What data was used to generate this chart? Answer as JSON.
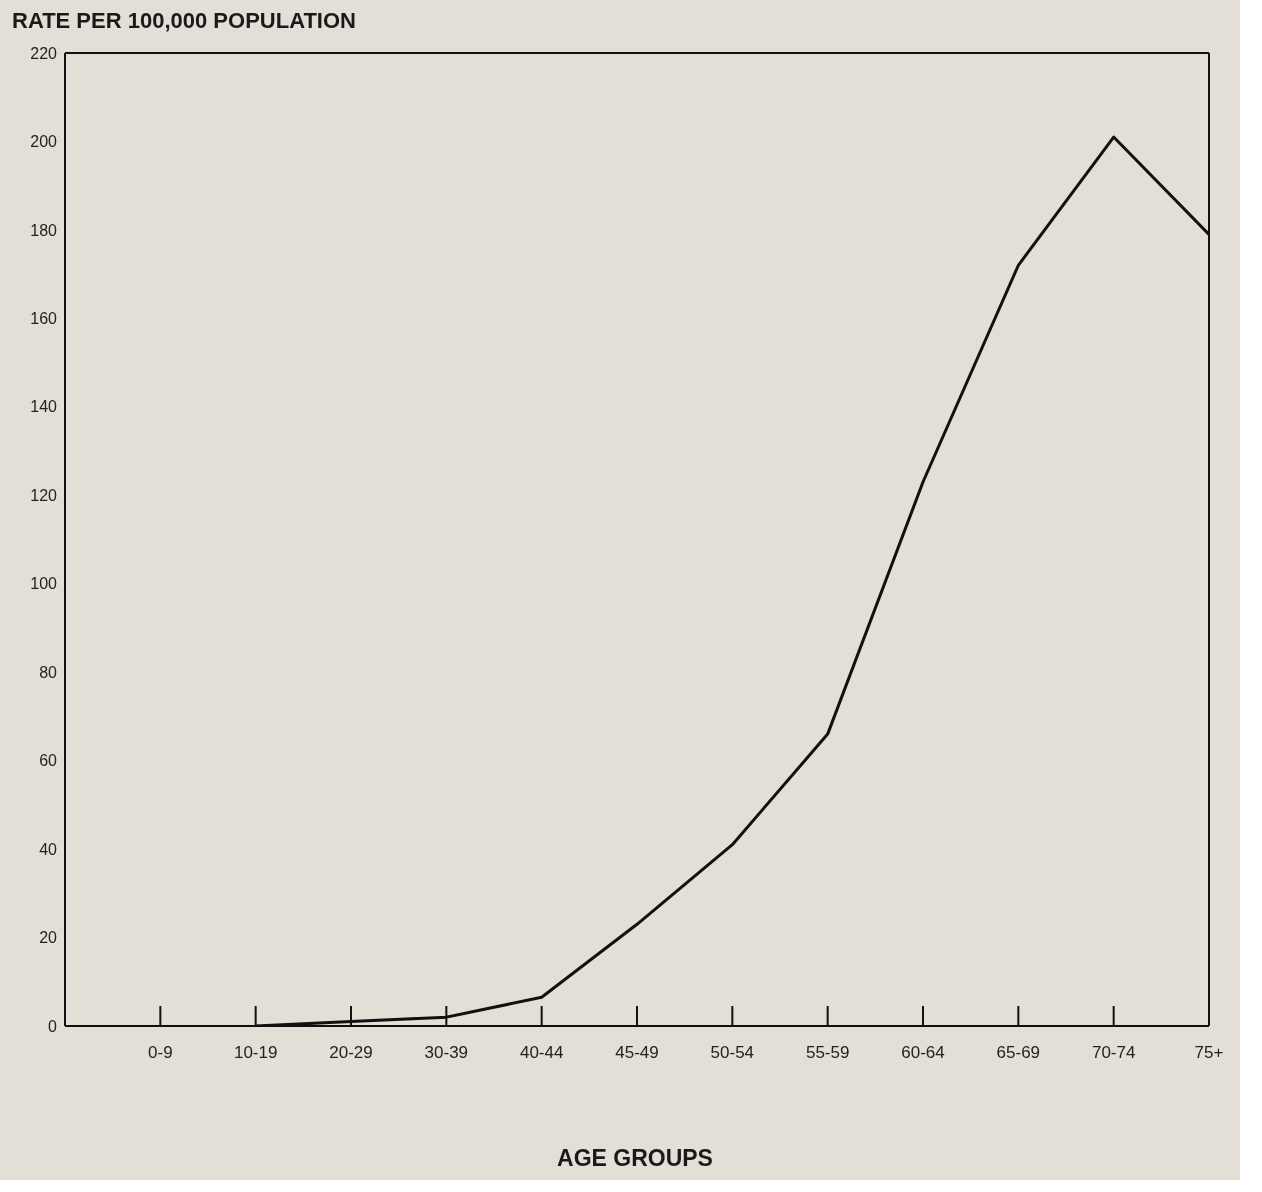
{
  "chart_data": {
    "type": "line",
    "ylabel": "RATE PER 100,000 POPULATION",
    "xlabel": "AGE GROUPS",
    "categories": [
      "0-9",
      "10-19",
      "20-29",
      "30-39",
      "40-44",
      "45-49",
      "50-54",
      "55-59",
      "60-64",
      "65-69",
      "70-74",
      "75+"
    ],
    "series": [
      {
        "color": "#111111",
        "values": [
          null,
          0,
          1,
          2,
          6.5,
          23,
          41,
          66,
          123,
          172,
          201,
          179
        ]
      }
    ],
    "ylim": [
      0,
      220
    ],
    "yticks": [
      0,
      20,
      40,
      60,
      80,
      100,
      120,
      140,
      160,
      180,
      200,
      220
    ],
    "marker": "none",
    "line_style": "solid"
  }
}
